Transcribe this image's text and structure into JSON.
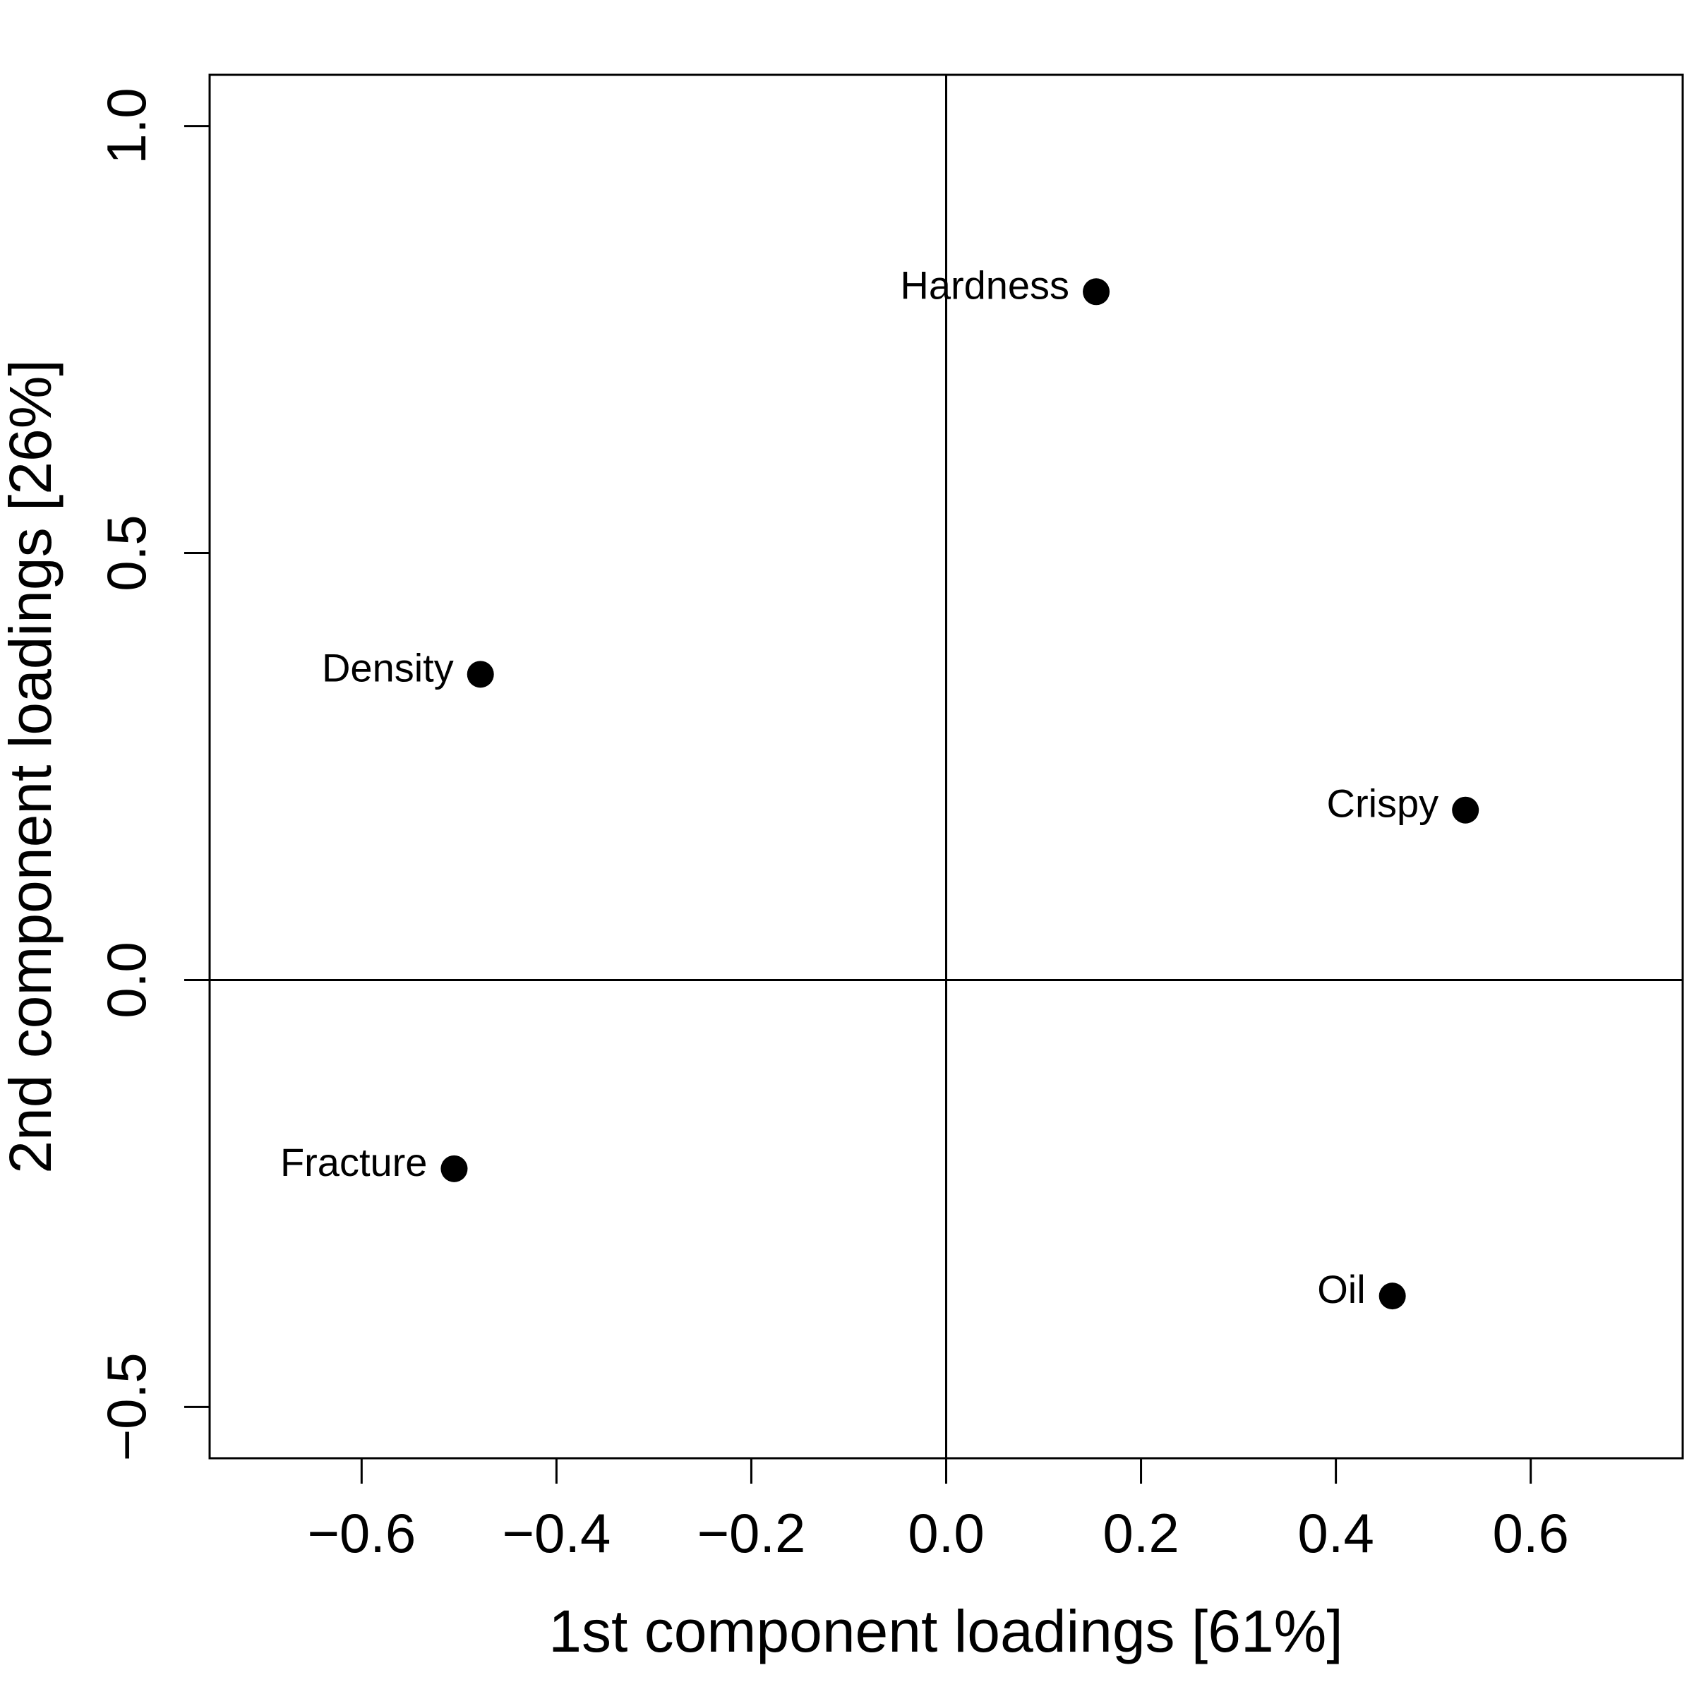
{
  "chart_data": {
    "type": "scatter",
    "title": "",
    "xlabel": "1st component loadings [61%]",
    "ylabel": "2nd component loadings [26%]",
    "xlim": [
      -0.756,
      0.756
    ],
    "ylim": [
      -0.56,
      1.06
    ],
    "xticks": [
      -0.6,
      -0.4,
      -0.2,
      0.0,
      0.2,
      0.4,
      0.6
    ],
    "xtick_labels": [
      "−0.6",
      "−0.4",
      "−0.2",
      "0.0",
      "0.2",
      "0.4",
      "0.6"
    ],
    "yticks": [
      -0.5,
      0.0,
      0.5,
      1.0
    ],
    "ytick_labels": [
      "−0.5",
      "0.0",
      "0.5",
      "1.0"
    ],
    "reference_lines": {
      "x": 0,
      "y": 0
    },
    "grid": false,
    "legend": "none",
    "marker_color": "#000000",
    "points": [
      {
        "label": "Hardness",
        "x": 0.154,
        "y": 0.806
      },
      {
        "label": "Density",
        "x": -0.478,
        "y": 0.358
      },
      {
        "label": "Crispy",
        "x": 0.533,
        "y": 0.199
      },
      {
        "label": "Fracture",
        "x": -0.505,
        "y": -0.221
      },
      {
        "label": "Oil",
        "x": 0.458,
        "y": -0.37
      }
    ]
  }
}
